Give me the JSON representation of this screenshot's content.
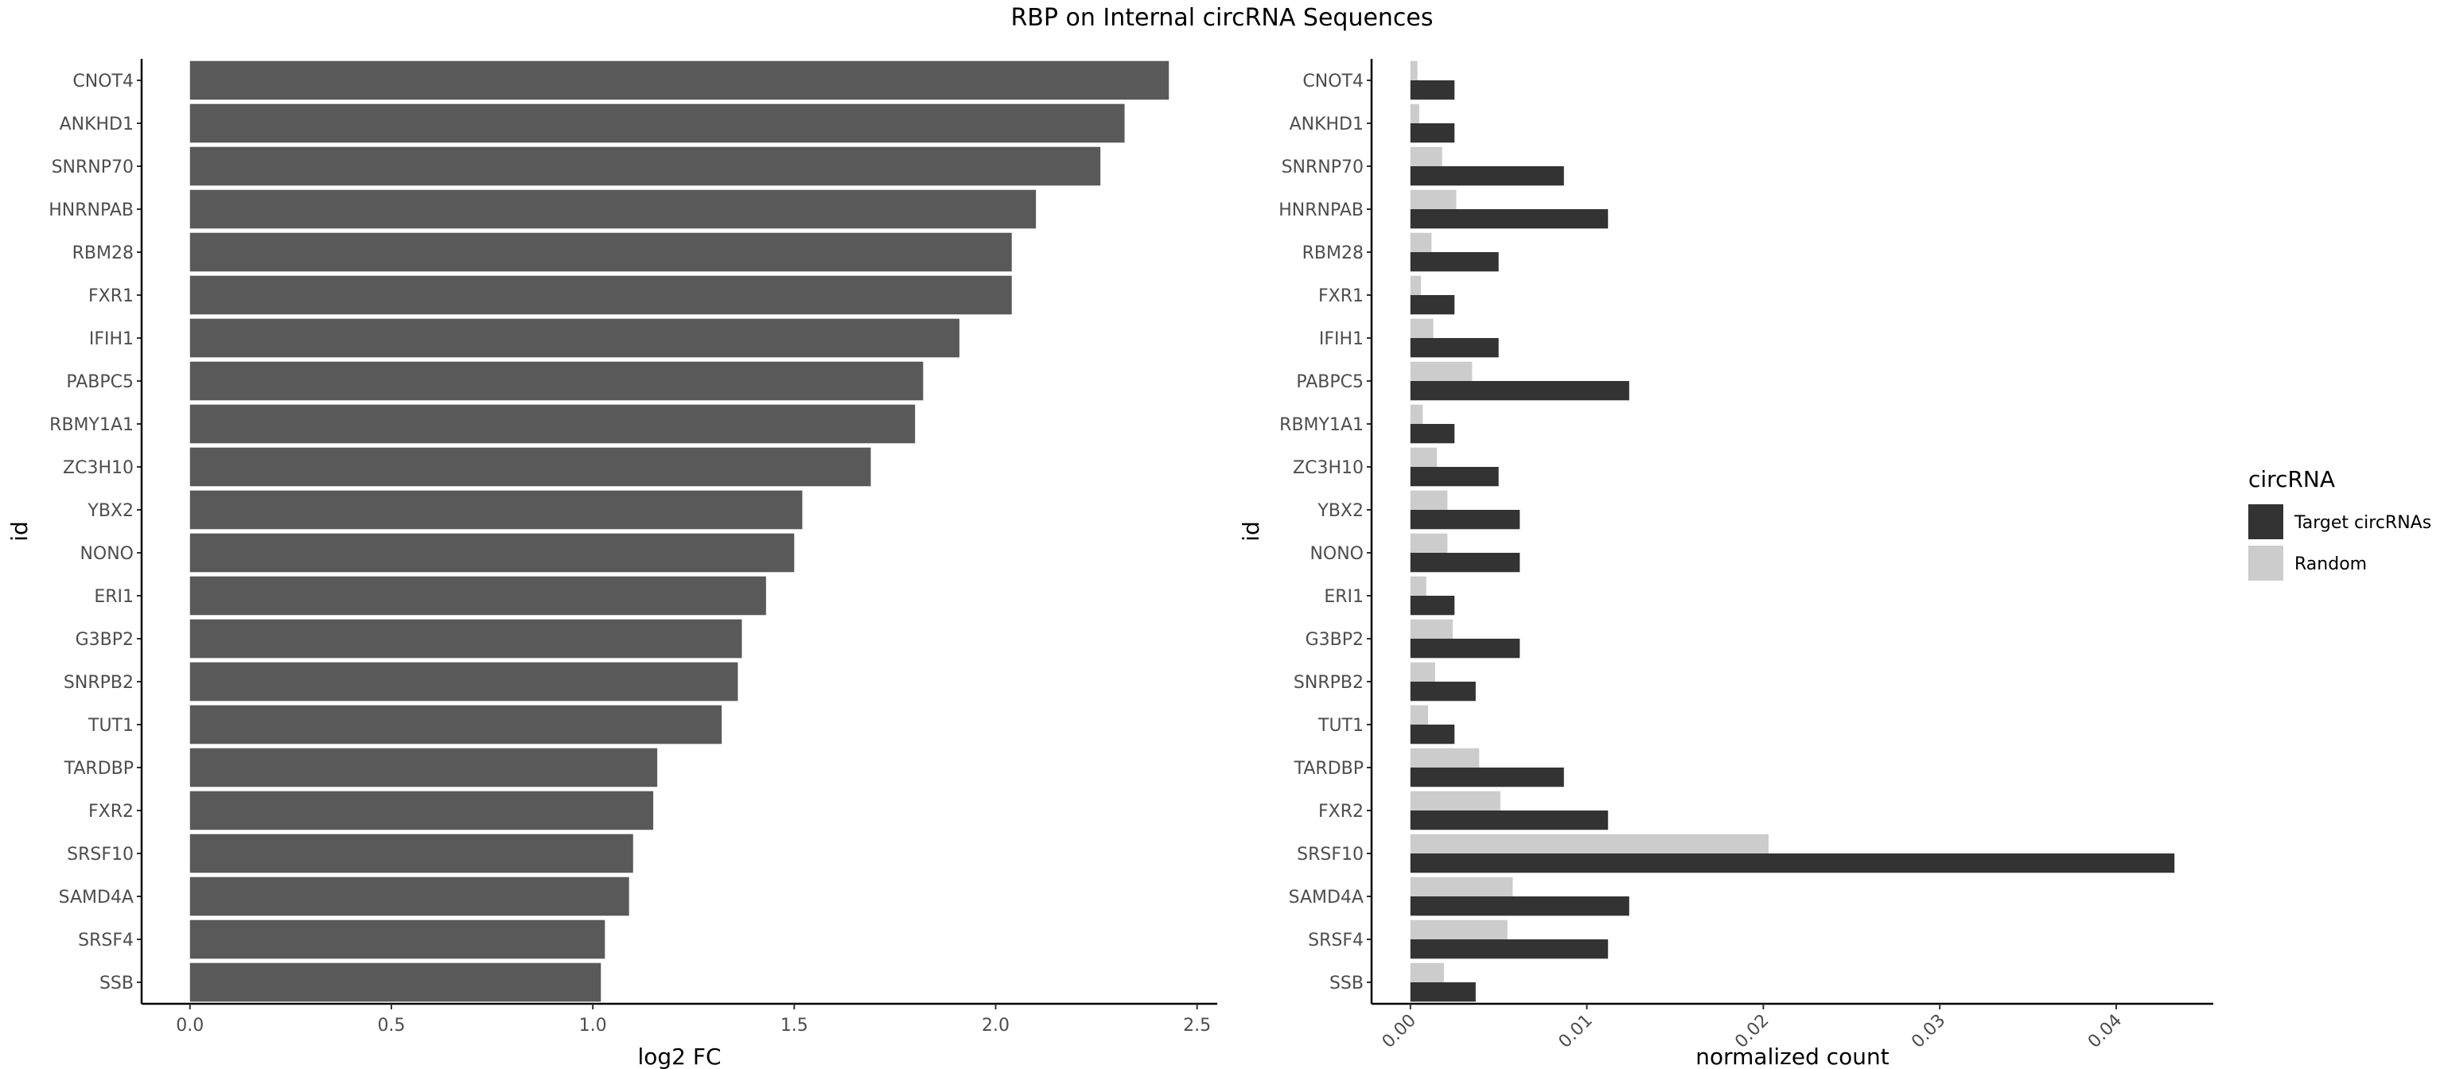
{
  "title": "RBP on Internal circRNA Sequences",
  "chart_data": [
    {
      "type": "bar",
      "orientation": "horizontal",
      "categories": [
        "CNOT4",
        "ANKHD1",
        "SNRNP70",
        "HNRNPAB",
        "RBM28",
        "FXR1",
        "IFIH1",
        "PABPC5",
        "RBMY1A1",
        "ZC3H10",
        "YBX2",
        "NONO",
        "ERI1",
        "G3BP2",
        "SNRPB2",
        "TUT1",
        "TARDBP",
        "FXR2",
        "SRSF10",
        "SAMD4A",
        "SRSF4",
        "SSB"
      ],
      "values": [
        2.43,
        2.32,
        2.26,
        2.1,
        2.04,
        2.04,
        1.91,
        1.82,
        1.8,
        1.69,
        1.52,
        1.5,
        1.43,
        1.37,
        1.36,
        1.32,
        1.16,
        1.15,
        1.1,
        1.09,
        1.03,
        1.02
      ],
      "xlabel": "log2 FC",
      "ylabel": "id",
      "xlim": [
        -0.12,
        2.55
      ],
      "xticks": [
        "0.0",
        "0.5",
        "1.0",
        "1.5",
        "2.0",
        "2.5"
      ],
      "xtick_values": [
        0,
        0.5,
        1.0,
        1.5,
        2.0,
        2.5
      ],
      "bar_color": "#595959",
      "grid": false
    },
    {
      "type": "bar",
      "orientation": "horizontal",
      "categories": [
        "CNOT4",
        "ANKHD1",
        "SNRNP70",
        "HNRNPAB",
        "RBM28",
        "FXR1",
        "IFIH1",
        "PABPC5",
        "RBMY1A1",
        "ZC3H10",
        "YBX2",
        "NONO",
        "ERI1",
        "G3BP2",
        "SNRPB2",
        "TUT1",
        "TARDBP",
        "FXR2",
        "SRSF10",
        "SAMD4A",
        "SRSF4",
        "SSB"
      ],
      "series": [
        {
          "name": "Target circRNAs",
          "color": "#333333",
          "values": [
            0.0025,
            0.0025,
            0.0087,
            0.0112,
            0.005,
            0.0025,
            0.005,
            0.0124,
            0.0025,
            0.005,
            0.0062,
            0.0062,
            0.0025,
            0.0062,
            0.0037,
            0.0025,
            0.0087,
            0.0112,
            0.0433,
            0.0124,
            0.0112,
            0.0037
          ]
        },
        {
          "name": "Random",
          "color": "#cccccc",
          "values": [
            0.0004,
            0.0005,
            0.0018,
            0.0026,
            0.0012,
            0.0006,
            0.0013,
            0.0035,
            0.0007,
            0.0015,
            0.0021,
            0.0021,
            0.0009,
            0.0024,
            0.0014,
            0.001,
            0.0039,
            0.0051,
            0.0203,
            0.0058,
            0.0055,
            0.0019
          ]
        }
      ],
      "xlabel": "normalized count",
      "ylabel": "id",
      "xlim": [
        -0.0022,
        0.0455
      ],
      "xticks": [
        "0.00",
        "0.01",
        "0.02",
        "0.03",
        "0.04"
      ],
      "xtick_values": [
        0,
        0.01,
        0.02,
        0.03,
        0.04
      ],
      "xtick_rotation": -45,
      "grid": false,
      "legend": {
        "title": "circRNA",
        "position": "right"
      }
    }
  ]
}
